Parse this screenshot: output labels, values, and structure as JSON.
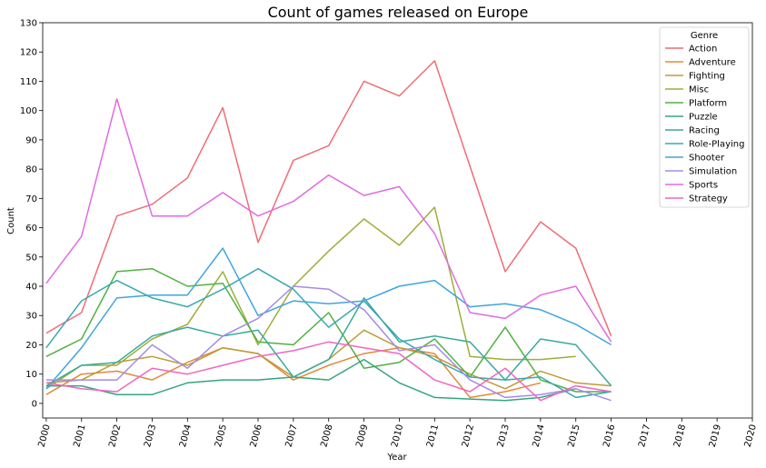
{
  "chart_data": {
    "type": "line",
    "title": "Count of games released on Europe",
    "xlabel": "Year",
    "ylabel": "Count",
    "xlim": [
      1999.9,
      2020
    ],
    "ylim": [
      -5,
      130
    ],
    "x_ticks": [
      2000,
      2001,
      2002,
      2003,
      2004,
      2005,
      2006,
      2007,
      2008,
      2009,
      2010,
      2011,
      2012,
      2013,
      2014,
      2015,
      2016,
      2017,
      2018,
      2019,
      2020
    ],
    "y_ticks": [
      0,
      10,
      20,
      30,
      40,
      50,
      60,
      70,
      80,
      90,
      100,
      110,
      120,
      130
    ],
    "grid": false,
    "legend": {
      "title": "Genre",
      "placement": "top-right"
    },
    "series": [
      {
        "name": "Action",
        "color": "#f06c75",
        "x": [
          2000,
          2001,
          2002,
          2003,
          2004,
          2005,
          2006,
          2007,
          2008,
          2009,
          2010,
          2011,
          2012,
          2013,
          2014,
          2015,
          2016
        ],
        "values": [
          24,
          31,
          64,
          68,
          77,
          101,
          55,
          83,
          88,
          110,
          105,
          117,
          81,
          45,
          62,
          53,
          23
        ]
      },
      {
        "name": "Adventure",
        "color": "#e08b3b",
        "x": [
          2000,
          2001,
          2002,
          2003,
          2004,
          2005,
          2006,
          2007,
          2008,
          2009,
          2010,
          2011,
          2012,
          2013,
          2014
        ],
        "values": [
          3,
          10,
          11,
          8,
          14,
          19,
          17,
          8,
          13,
          17,
          19,
          17,
          2,
          4,
          7
        ]
      },
      {
        "name": "Fighting",
        "color": "#bf9b37",
        "x": [
          2000,
          2001,
          2002,
          2003,
          2004,
          2005,
          2006,
          2007,
          2008,
          2009,
          2010,
          2011,
          2012,
          2013,
          2014,
          2015,
          2016
        ],
        "values": [
          7,
          8,
          14,
          16,
          13,
          19,
          17,
          9,
          15,
          25,
          19,
          16,
          10,
          5,
          11,
          7,
          6
        ]
      },
      {
        "name": "Misc",
        "color": "#9caf3a",
        "x": [
          2000,
          2001,
          2002,
          2003,
          2004,
          2005,
          2006,
          2007,
          2008,
          2009,
          2010,
          2011,
          2012,
          2013,
          2014,
          2015
        ],
        "values": [
          5,
          13,
          13,
          22,
          27,
          45,
          20,
          40,
          52,
          63,
          54,
          67,
          16,
          15,
          15,
          16
        ]
      },
      {
        "name": "Platform",
        "color": "#50b142",
        "x": [
          2000,
          2001,
          2002,
          2003,
          2004,
          2005,
          2006,
          2007,
          2008,
          2009,
          2010,
          2011,
          2012,
          2013,
          2014,
          2015,
          2016
        ],
        "values": [
          16,
          22,
          45,
          46,
          40,
          41,
          21,
          20,
          31,
          12,
          14,
          22,
          9,
          26,
          8,
          4,
          4
        ]
      },
      {
        "name": "Puzzle",
        "color": "#35a57c",
        "x": [
          2000,
          2001,
          2002,
          2003,
          2004,
          2005,
          2006,
          2007,
          2008,
          2009,
          2010,
          2011,
          2012,
          2013,
          2014,
          2015
        ],
        "values": [
          6,
          6,
          3,
          3,
          7,
          8,
          8,
          9,
          8,
          15,
          7,
          2,
          1.5,
          1,
          2,
          5
        ]
      },
      {
        "name": "Racing",
        "color": "#38a99d",
        "x": [
          2000,
          2001,
          2002,
          2003,
          2004,
          2005,
          2006,
          2007,
          2008,
          2009,
          2010,
          2011,
          2012,
          2013,
          2014,
          2015,
          2016
        ],
        "values": [
          6,
          13,
          14,
          23,
          26,
          23,
          25,
          9,
          15,
          36,
          21,
          23,
          21,
          8,
          22,
          20,
          6
        ]
      },
      {
        "name": "Role-Playing",
        "color": "#39a8b4",
        "x": [
          2000,
          2001,
          2002,
          2003,
          2004,
          2005,
          2006,
          2007,
          2008,
          2009,
          2010,
          2011,
          2012,
          2013,
          2014,
          2015,
          2016
        ],
        "values": [
          19,
          35,
          42,
          36,
          33,
          39,
          46,
          39,
          26,
          35,
          22,
          15,
          9,
          8,
          9,
          2,
          4
        ]
      },
      {
        "name": "Shooter",
        "color": "#3ea5de",
        "x": [
          2000,
          2001,
          2002,
          2003,
          2004,
          2005,
          2006,
          2007,
          2008,
          2009,
          2010,
          2011,
          2012,
          2013,
          2014,
          2015,
          2016
        ],
        "values": [
          5,
          19,
          36,
          37,
          37,
          53,
          30,
          35,
          34,
          35,
          40,
          42,
          33,
          34,
          32,
          27,
          20
        ]
      },
      {
        "name": "Simulation",
        "color": "#a58be5",
        "x": [
          2000,
          2001,
          2002,
          2003,
          2004,
          2005,
          2006,
          2007,
          2008,
          2009,
          2010,
          2011,
          2012,
          2013,
          2014,
          2015,
          2016
        ],
        "values": [
          8,
          8,
          8,
          20,
          12,
          23,
          29,
          40,
          39,
          32,
          18,
          20,
          8,
          2,
          3,
          5,
          1
        ]
      },
      {
        "name": "Sports",
        "color": "#e26ae2",
        "x": [
          2000,
          2001,
          2002,
          2003,
          2004,
          2005,
          2006,
          2007,
          2008,
          2009,
          2010,
          2011,
          2012,
          2013,
          2014,
          2015,
          2016
        ],
        "values": [
          41,
          57,
          104,
          64,
          64,
          72,
          64,
          69,
          78,
          71,
          74,
          58,
          31,
          29,
          37,
          40,
          21
        ]
      },
      {
        "name": "Strategy",
        "color": "#f165c4",
        "x": [
          2000,
          2001,
          2002,
          2003,
          2004,
          2005,
          2006,
          2007,
          2008,
          2009,
          2010,
          2011,
          2012,
          2013,
          2014,
          2015,
          2016
        ],
        "values": [
          7,
          5,
          4,
          12,
          10,
          13,
          16,
          18,
          21,
          19,
          17,
          8,
          4,
          12,
          1,
          6,
          4
        ]
      }
    ]
  }
}
